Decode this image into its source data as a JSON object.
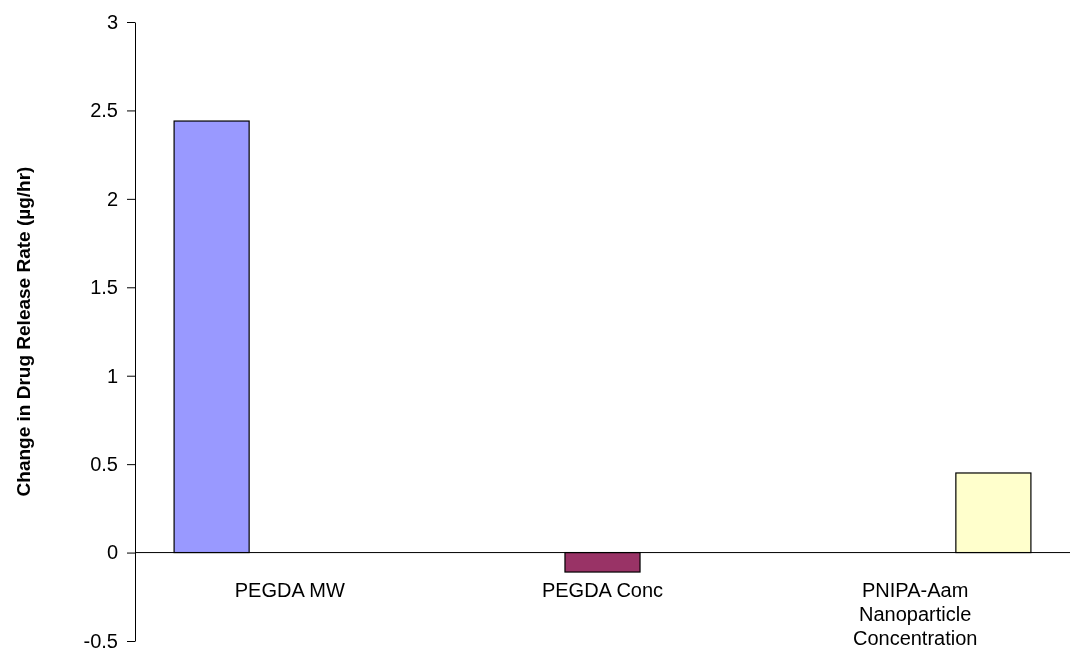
{
  "chart_data": {
    "type": "bar",
    "ylabel": "Change in Drug Release Rate (µg/hr)",
    "categories": [
      "PEGDA MW",
      "PEGDA Conc",
      "PNIPA-Aam Nanoparticle Concentration"
    ],
    "series": [
      {
        "color": "#9999ff",
        "values": [
          2.44,
          null,
          null
        ]
      },
      {
        "color": "#993366",
        "values": [
          null,
          -0.11,
          null
        ]
      },
      {
        "color": "#ffffcc",
        "values": [
          null,
          null,
          0.45
        ]
      }
    ],
    "ylim": [
      -0.5,
      3
    ],
    "yticks": [
      -0.5,
      0,
      0.5,
      1,
      1.5,
      2,
      2.5,
      3
    ],
    "grid": false
  }
}
